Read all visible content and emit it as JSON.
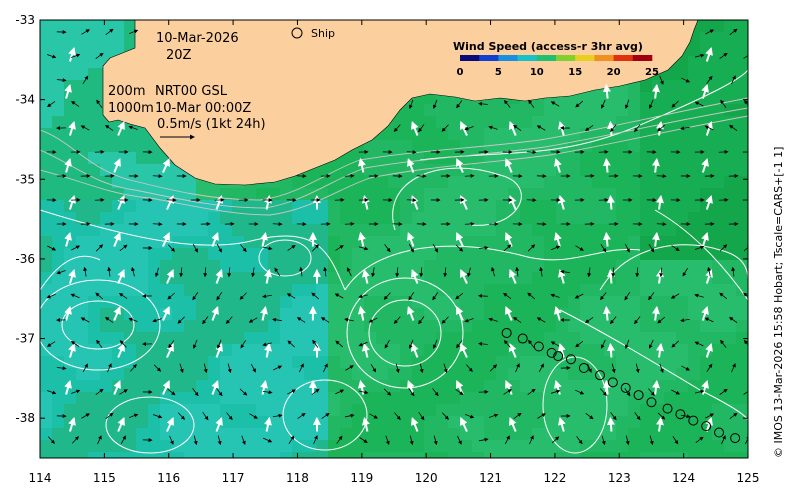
{
  "chart_data": {
    "type": "map",
    "xlim": [
      114,
      125
    ],
    "ylim": [
      -38.5,
      -33
    ],
    "x_ticks": [
      "114",
      "115",
      "116",
      "117",
      "118",
      "119",
      "120",
      "121",
      "122",
      "123",
      "124",
      "125"
    ],
    "y_ticks": [
      "-33",
      "-34",
      "-35",
      "-36",
      "-37",
      "-38"
    ],
    "annotation": {
      "date": "10-Mar-2026",
      "hour": "20Z",
      "line1_depth": "200m",
      "line1_text": "NRT00 GSL",
      "line2_depth": "1000m",
      "line2_text": "10-Mar 00:00Z",
      "scale_label": "0.5m/s (1kt 24h)"
    },
    "legend_ship": "Ship",
    "colorbar": {
      "title": "Wind Speed (access-r 3hr avg)",
      "ticks": [
        "0",
        "5",
        "10",
        "15",
        "20",
        "25"
      ],
      "range": [
        0,
        25
      ]
    },
    "credit": "© IMOS 13-Mar-2026 15:58 Hobart; Tscale=CARS+[-1 1]",
    "ship_track": [
      [
        121.25,
        -36.93
      ],
      [
        121.5,
        -37.0
      ],
      [
        121.75,
        -37.1
      ],
      [
        121.95,
        -37.18
      ],
      [
        122.05,
        -37.22
      ],
      [
        122.25,
        -37.26
      ],
      [
        122.45,
        -37.37
      ],
      [
        122.7,
        -37.46
      ],
      [
        122.9,
        -37.55
      ],
      [
        123.1,
        -37.62
      ],
      [
        123.3,
        -37.71
      ],
      [
        123.5,
        -37.8
      ],
      [
        123.75,
        -37.88
      ],
      [
        123.95,
        -37.95
      ],
      [
        124.15,
        -38.03
      ],
      [
        124.35,
        -38.1
      ],
      [
        124.55,
        -38.18
      ],
      [
        124.8,
        -38.25
      ]
    ],
    "colors": {
      "land": "#fccf9f",
      "ocean_base": "#22b863",
      "ocean_teal": "#1cc0a8",
      "ocean_dark": "#13a64a",
      "contour": "#ffffff",
      "isobath": "#c8c8c8"
    }
  }
}
